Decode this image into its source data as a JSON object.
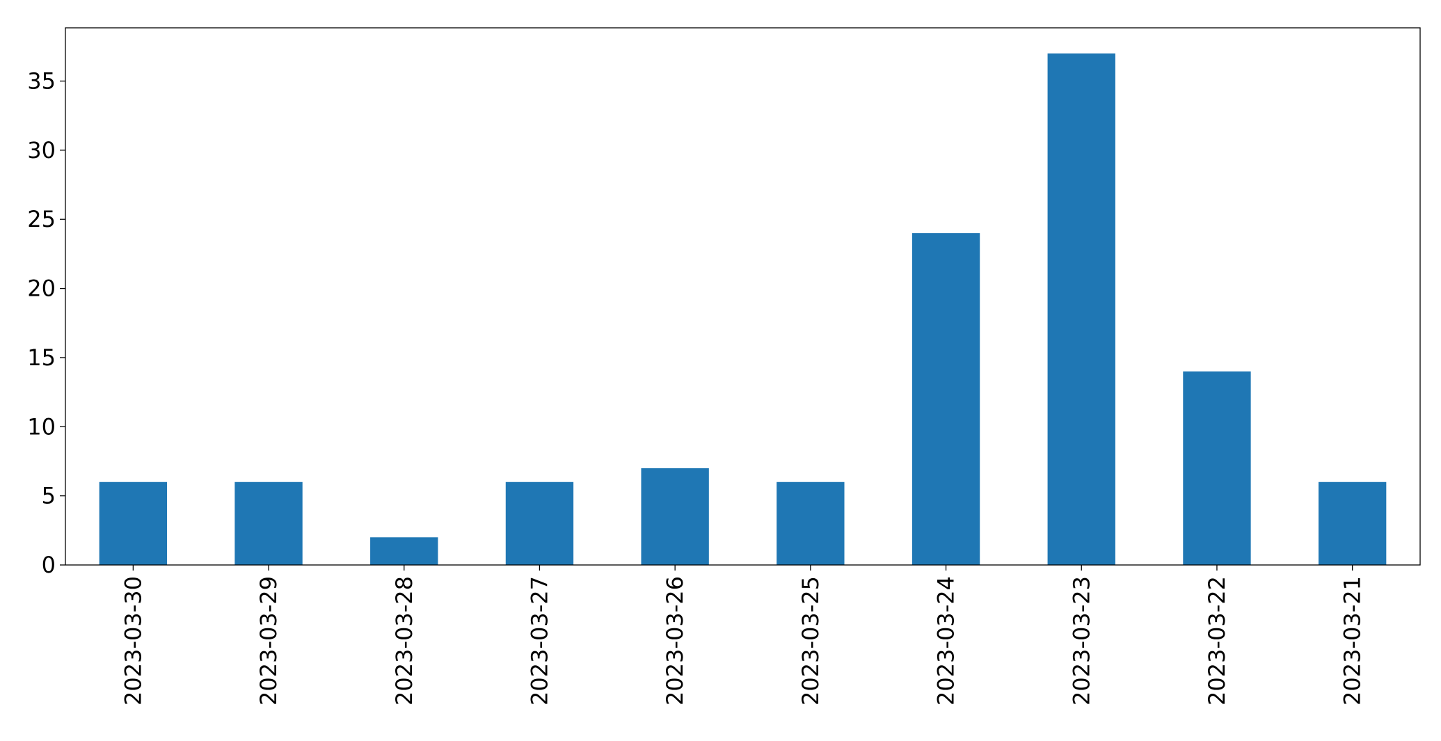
{
  "chart_data": {
    "type": "bar",
    "categories": [
      "2023-03-30",
      "2023-03-29",
      "2023-03-28",
      "2023-03-27",
      "2023-03-26",
      "2023-03-25",
      "2023-03-24",
      "2023-03-23",
      "2023-03-22",
      "2023-03-21"
    ],
    "values": [
      6,
      6,
      2,
      6,
      7,
      6,
      24,
      37,
      14,
      6
    ],
    "color": "#1f77b4",
    "ylim": [
      0,
      38.85
    ],
    "yticks": [
      0,
      5,
      10,
      15,
      20,
      25,
      30,
      35
    ],
    "grid": false
  }
}
